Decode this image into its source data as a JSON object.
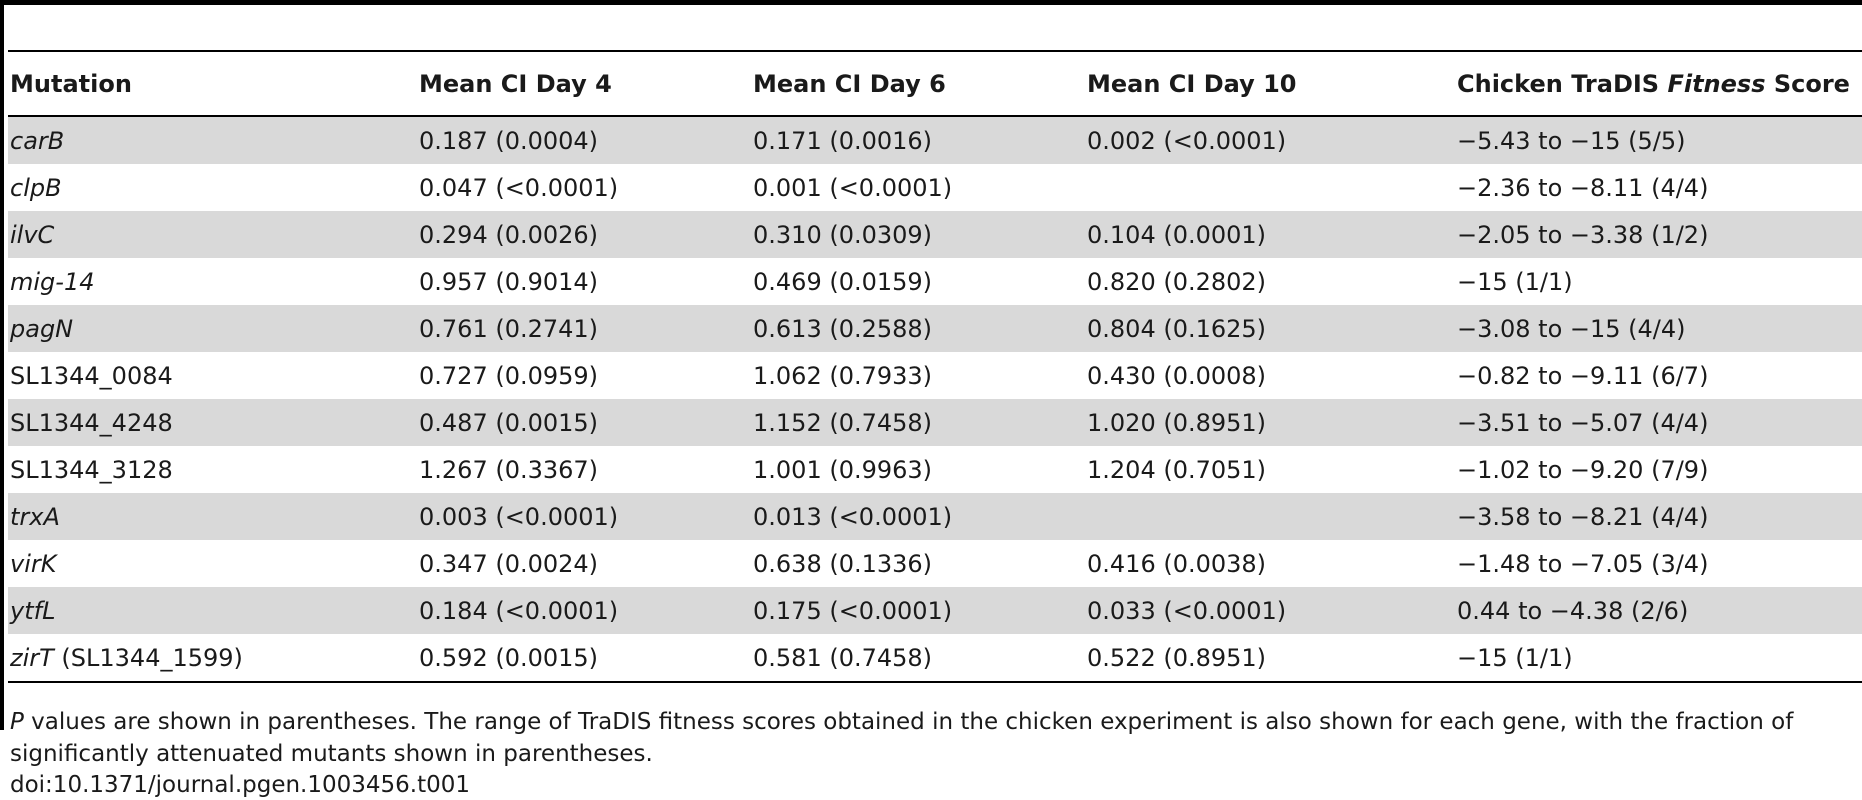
{
  "table": {
    "headers": {
      "mutation": "Mutation",
      "day4": "Mean CI Day 4",
      "day6": "Mean CI Day 6",
      "day10": "Mean CI Day 10",
      "fitness_prefix": "Chicken TraDIS ",
      "fitness_italic": "Fitness",
      "fitness_suffix": " Score"
    },
    "rows": [
      {
        "mutation": "carB",
        "suffix": "",
        "day4": "0.187 (0.0004)",
        "day6": "0.171 (0.0016)",
        "day10": "0.002 (<0.0001)",
        "fitness": "−5.43 to −15 (5/5)"
      },
      {
        "mutation": "clpB",
        "suffix": "",
        "day4": "0.047 (<0.0001)",
        "day6": "0.001 (<0.0001)",
        "day10": "",
        "fitness": "−2.36 to −8.11 (4/4)"
      },
      {
        "mutation": "ilvC",
        "suffix": "",
        "day4": "0.294 (0.0026)",
        "day6": "0.310 (0.0309)",
        "day10": "0.104 (0.0001)",
        "fitness": "−2.05 to −3.38 (1/2)"
      },
      {
        "mutation": "mig-14",
        "suffix": "",
        "day4": "0.957 (0.9014)",
        "day6": "0.469 (0.0159)",
        "day10": "0.820 (0.2802)",
        "fitness": "−15 (1/1)"
      },
      {
        "mutation": "pagN",
        "suffix": "",
        "day4": "0.761 (0.2741)",
        "day6": "0.613 (0.2588)",
        "day10": "0.804 (0.1625)",
        "fitness": "−3.08 to −15 (4/4)"
      },
      {
        "mutation": "SL1344_0084",
        "suffix": "",
        "day4": "0.727 (0.0959)",
        "day6": "1.062 (0.7933)",
        "day10": "0.430 (0.0008)",
        "fitness": "−0.82 to −9.11 (6/7)"
      },
      {
        "mutation": "SL1344_4248",
        "suffix": "",
        "day4": "0.487 (0.0015)",
        "day6": "1.152 (0.7458)",
        "day10": "1.020 (0.8951)",
        "fitness": "−3.51 to −5.07 (4/4)"
      },
      {
        "mutation": "SL1344_3128",
        "suffix": "",
        "day4": "1.267 (0.3367)",
        "day6": "1.001 (0.9963)",
        "day10": "1.204 (0.7051)",
        "fitness": "−1.02 to −9.20 (7/9)"
      },
      {
        "mutation": "trxA",
        "suffix": "",
        "day4": "0.003 (<0.0001)",
        "day6": "0.013 (<0.0001)",
        "day10": "",
        "fitness": "−3.58 to −8.21 (4/4)"
      },
      {
        "mutation": "virK",
        "suffix": "",
        "day4": "0.347 (0.0024)",
        "day6": "0.638 (0.1336)",
        "day10": "0.416 (0.0038)",
        "fitness": "−1.48 to −7.05 (3/4)"
      },
      {
        "mutation": "ytfL",
        "suffix": "",
        "day4": "0.184 (<0.0001)",
        "day6": "0.175 (<0.0001)",
        "day10": "0.033 (<0.0001)",
        "fitness": "0.44 to −4.38 (2/6)"
      },
      {
        "mutation": "zirT",
        "suffix": " (SL1344_1599)",
        "day4": "0.592 (0.0015)",
        "day6": "0.581 (0.7458)",
        "day10": "0.522 (0.8951)",
        "fitness": "−15 (1/1)"
      }
    ]
  },
  "footnote": {
    "italic_p": "P",
    "text": " values are shown in parentheses. The range of TraDIS fitness scores obtained in the chicken experiment is also shown for each gene, with the fraction of significantly attenuated mutants shown in parentheses.",
    "doi": "doi:10.1371/journal.pgen.1003456.t001"
  }
}
